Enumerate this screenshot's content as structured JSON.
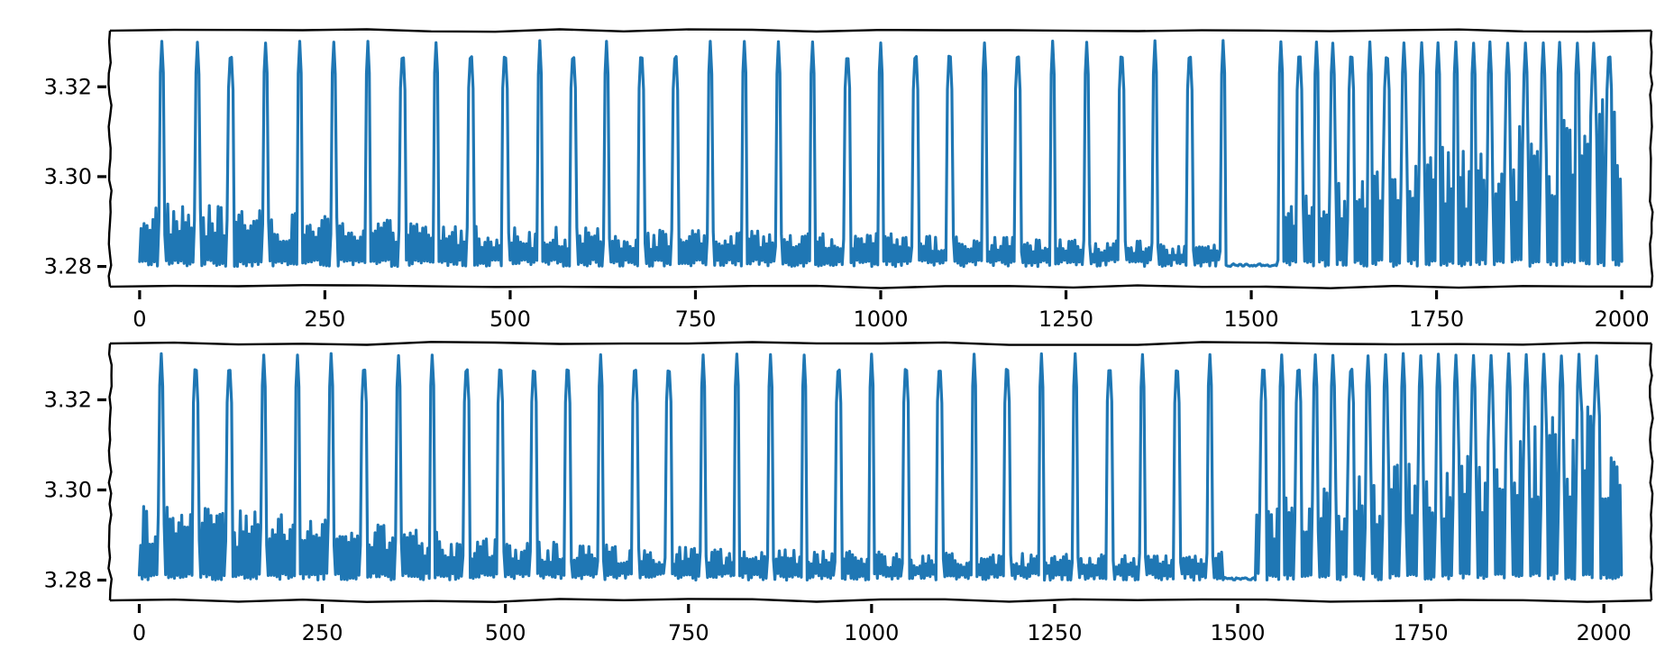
{
  "colors": {
    "series": "#1f77b4",
    "frame": "#000000",
    "background": "#ffffff"
  },
  "chart_data": [
    {
      "type": "line",
      "style": "xkcd",
      "title": "",
      "xlabel": "",
      "ylabel": "",
      "xlim": [
        -40,
        2040
      ],
      "ylim": [
        3.2755,
        3.3325
      ],
      "xticks": [
        0,
        250,
        500,
        750,
        1000,
        1250,
        1500,
        1750,
        2000
      ],
      "xtick_labels": [
        "0",
        "250",
        "500",
        "750",
        "1000",
        "1250",
        "1500",
        "1750",
        "2000"
      ],
      "yticks": [
        3.28,
        3.3,
        3.32
      ],
      "ytick_labels": [
        "3.28",
        "3.30",
        "3.32"
      ],
      "grid": false,
      "legend": "none",
      "x_end": 2000,
      "baseline": 3.28,
      "spike_peak": 3.33,
      "spikes_x": [
        30,
        78,
        123,
        170,
        216,
        262,
        308,
        355,
        400,
        447,
        493,
        540,
        585,
        630,
        677,
        723,
        770,
        816,
        862,
        908,
        955,
        1000,
        1047,
        1093,
        1140,
        1185,
        1232,
        1278,
        1325,
        1370,
        1417,
        1462
      ],
      "gap": [
        1465,
        1535
      ],
      "late_spikes_x": [
        1540,
        1565,
        1588,
        1610,
        1635,
        1660,
        1683,
        1706,
        1730,
        1752,
        1776,
        1800,
        1822,
        1846,
        1870,
        1894,
        1916,
        1940,
        1962,
        1983
      ],
      "envelope": [
        {
          "x": 0,
          "upper": 3.295
        },
        {
          "x": 200,
          "upper": 3.292
        },
        {
          "x": 500,
          "upper": 3.289
        },
        {
          "x": 800,
          "upper": 3.288
        },
        {
          "x": 1100,
          "upper": 3.287
        },
        {
          "x": 1300,
          "upper": 3.286
        },
        {
          "x": 1460,
          "upper": 3.285
        },
        {
          "x": 1540,
          "upper": 3.296
        },
        {
          "x": 1700,
          "upper": 3.304
        },
        {
          "x": 1850,
          "upper": 3.311
        },
        {
          "x": 1990,
          "upper": 3.318
        }
      ]
    },
    {
      "type": "line",
      "style": "xkcd",
      "title": "",
      "xlabel": "",
      "ylabel": "",
      "xlim": [
        -40,
        2065
      ],
      "ylim": [
        3.2755,
        3.3325
      ],
      "xticks": [
        0,
        250,
        500,
        750,
        1000,
        1250,
        1500,
        1750,
        2000
      ],
      "xtick_labels": [
        "0",
        "250",
        "500",
        "750",
        "1000",
        "1250",
        "1500",
        "1750",
        "2000"
      ],
      "yticks": [
        3.28,
        3.3,
        3.32
      ],
      "ytick_labels": [
        "3.28",
        "3.30",
        "3.32"
      ],
      "grid": false,
      "legend": "none",
      "x_end": 2025,
      "baseline": 3.28,
      "spike_peak": 3.33,
      "spikes_x": [
        30,
        77,
        123,
        170,
        216,
        262,
        307,
        354,
        400,
        447,
        493,
        539,
        585,
        630,
        677,
        723,
        770,
        816,
        862,
        908,
        955,
        1000,
        1047,
        1093,
        1140,
        1185,
        1232,
        1278,
        1325,
        1370,
        1417,
        1462
      ],
      "gap": [
        1480,
        1525
      ],
      "late_spikes_x": [
        1535,
        1560,
        1583,
        1606,
        1630,
        1655,
        1678,
        1702,
        1726,
        1750,
        1774,
        1798,
        1822,
        1846,
        1870,
        1894,
        1918,
        1942,
        1966,
        1990
      ],
      "envelope": [
        {
          "x": 0,
          "upper": 3.297
        },
        {
          "x": 200,
          "upper": 3.295
        },
        {
          "x": 500,
          "upper": 3.289
        },
        {
          "x": 800,
          "upper": 3.287
        },
        {
          "x": 1100,
          "upper": 3.286
        },
        {
          "x": 1300,
          "upper": 3.286
        },
        {
          "x": 1470,
          "upper": 3.287
        },
        {
          "x": 1535,
          "upper": 3.297
        },
        {
          "x": 1700,
          "upper": 3.305
        },
        {
          "x": 1850,
          "upper": 3.312
        },
        {
          "x": 2000,
          "upper": 3.32
        }
      ]
    }
  ]
}
